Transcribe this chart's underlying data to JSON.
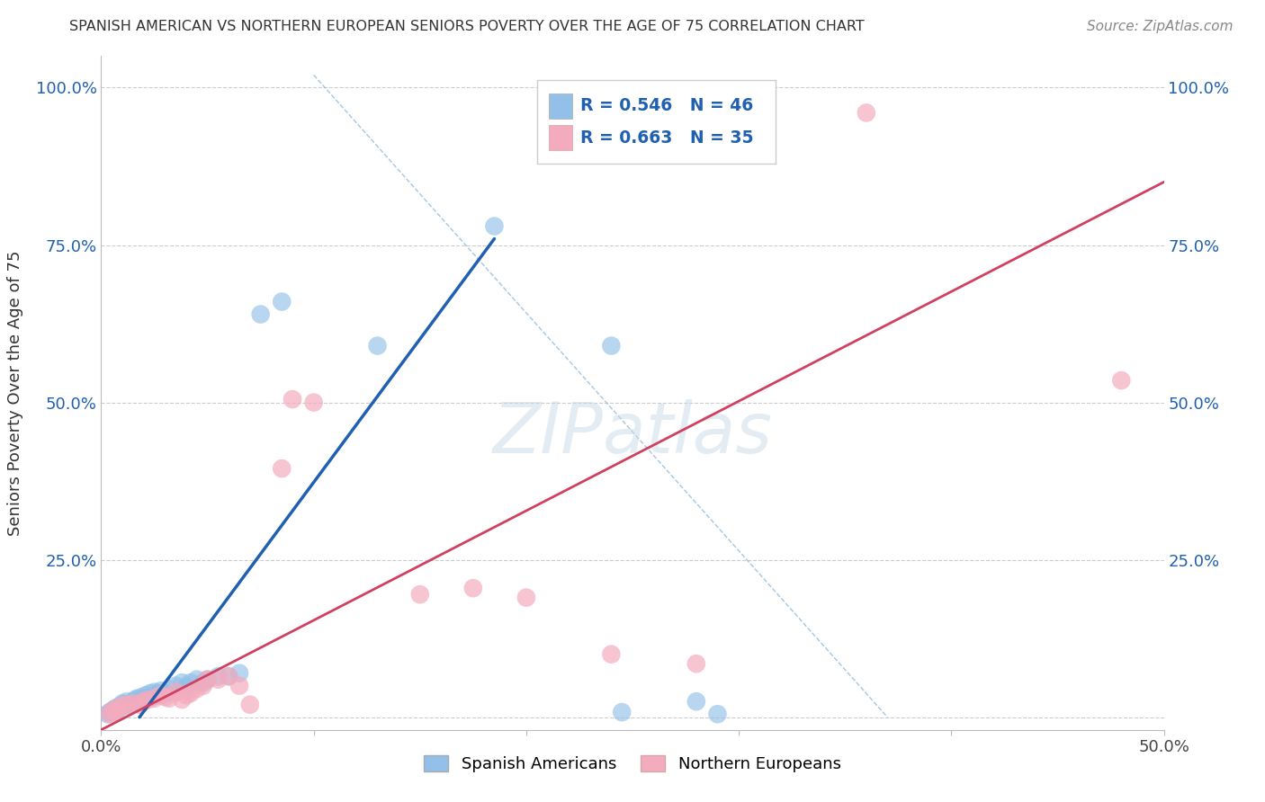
{
  "title": "SPANISH AMERICAN VS NORTHERN EUROPEAN SENIORS POVERTY OVER THE AGE OF 75 CORRELATION CHART",
  "source": "Source: ZipAtlas.com",
  "ylabel": "Seniors Poverty Over the Age of 75",
  "xlim": [
    0.0,
    0.5
  ],
  "ylim": [
    -0.02,
    1.05
  ],
  "xtick_pos": [
    0.0,
    0.1,
    0.2,
    0.3,
    0.4,
    0.5
  ],
  "xtick_labels": [
    "0.0%",
    "",
    "",
    "",
    "",
    "50.0%"
  ],
  "ytick_pos": [
    0.0,
    0.25,
    0.5,
    0.75,
    1.0
  ],
  "ytick_labels": [
    "",
    "25.0%",
    "50.0%",
    "75.0%",
    "100.0%"
  ],
  "blue_R": "R = 0.546",
  "blue_N": "N = 46",
  "pink_R": "R = 0.663",
  "pink_N": "N = 35",
  "blue_color": "#92C0E8",
  "pink_color": "#F4ABBE",
  "blue_line_color": "#2060B0",
  "pink_line_color": "#D04060",
  "diag_color": "#90B8D8",
  "blue_line_x": [
    0.018,
    0.185
  ],
  "blue_line_y": [
    0.0,
    0.76
  ],
  "pink_line_x": [
    0.0,
    0.5
  ],
  "pink_line_y": [
    -0.02,
    0.85
  ],
  "diag_line_x": [
    0.1,
    0.37
  ],
  "diag_line_y": [
    1.02,
    0.0
  ],
  "blue_scatter": [
    [
      0.003,
      0.005
    ],
    [
      0.004,
      0.008
    ],
    [
      0.005,
      0.01
    ],
    [
      0.006,
      0.012
    ],
    [
      0.007,
      0.015
    ],
    [
      0.008,
      0.012
    ],
    [
      0.009,
      0.018
    ],
    [
      0.01,
      0.022
    ],
    [
      0.011,
      0.02
    ],
    [
      0.012,
      0.025
    ],
    [
      0.013,
      0.018
    ],
    [
      0.014,
      0.022
    ],
    [
      0.015,
      0.025
    ],
    [
      0.016,
      0.028
    ],
    [
      0.017,
      0.03
    ],
    [
      0.018,
      0.025
    ],
    [
      0.019,
      0.032
    ],
    [
      0.02,
      0.028
    ],
    [
      0.021,
      0.035
    ],
    [
      0.022,
      0.03
    ],
    [
      0.023,
      0.038
    ],
    [
      0.024,
      0.032
    ],
    [
      0.025,
      0.04
    ],
    [
      0.026,
      0.035
    ],
    [
      0.027,
      0.038
    ],
    [
      0.028,
      0.042
    ],
    [
      0.03,
      0.038
    ],
    [
      0.032,
      0.045
    ],
    [
      0.035,
      0.05
    ],
    [
      0.038,
      0.055
    ],
    [
      0.04,
      0.048
    ],
    [
      0.042,
      0.055
    ],
    [
      0.045,
      0.06
    ],
    [
      0.048,
      0.055
    ],
    [
      0.05,
      0.06
    ],
    [
      0.055,
      0.065
    ],
    [
      0.06,
      0.065
    ],
    [
      0.065,
      0.07
    ],
    [
      0.075,
      0.64
    ],
    [
      0.085,
      0.66
    ],
    [
      0.13,
      0.59
    ],
    [
      0.185,
      0.78
    ],
    [
      0.24,
      0.59
    ],
    [
      0.245,
      0.008
    ],
    [
      0.28,
      0.025
    ],
    [
      0.29,
      0.005
    ]
  ],
  "pink_scatter": [
    [
      0.004,
      0.005
    ],
    [
      0.005,
      0.01
    ],
    [
      0.007,
      0.008
    ],
    [
      0.008,
      0.015
    ],
    [
      0.01,
      0.018
    ],
    [
      0.012,
      0.02
    ],
    [
      0.015,
      0.022
    ],
    [
      0.018,
      0.02
    ],
    [
      0.02,
      0.025
    ],
    [
      0.022,
      0.028
    ],
    [
      0.025,
      0.03
    ],
    [
      0.028,
      0.035
    ],
    [
      0.03,
      0.032
    ],
    [
      0.032,
      0.03
    ],
    [
      0.035,
      0.04
    ],
    [
      0.038,
      0.028
    ],
    [
      0.04,
      0.035
    ],
    [
      0.042,
      0.038
    ],
    [
      0.045,
      0.045
    ],
    [
      0.048,
      0.05
    ],
    [
      0.05,
      0.06
    ],
    [
      0.055,
      0.06
    ],
    [
      0.06,
      0.065
    ],
    [
      0.065,
      0.05
    ],
    [
      0.07,
      0.02
    ],
    [
      0.085,
      0.395
    ],
    [
      0.09,
      0.505
    ],
    [
      0.1,
      0.5
    ],
    [
      0.15,
      0.195
    ],
    [
      0.175,
      0.205
    ],
    [
      0.2,
      0.19
    ],
    [
      0.24,
      0.1
    ],
    [
      0.28,
      0.085
    ],
    [
      0.36,
      0.96
    ],
    [
      0.48,
      0.535
    ]
  ]
}
